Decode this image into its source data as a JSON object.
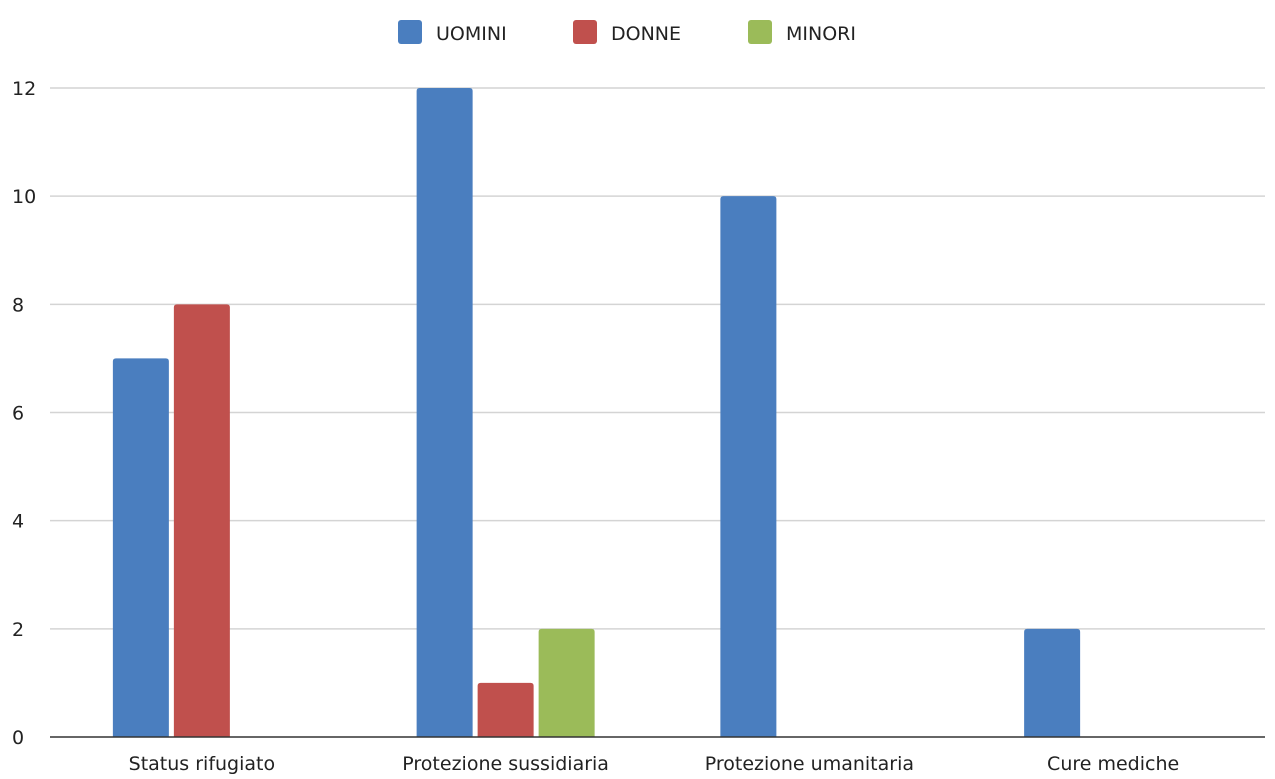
{
  "chart_data": {
    "type": "bar",
    "categories": [
      "Status rifugiato",
      "Protezione sussidiaria",
      "Protezione umanitaria",
      "Cure mediche"
    ],
    "series": [
      {
        "name": "UOMINI",
        "color": "#4a7ebf",
        "values": [
          7,
          12,
          10,
          2
        ]
      },
      {
        "name": "DONNE",
        "color": "#c0504d",
        "values": [
          8,
          1,
          0,
          0
        ]
      },
      {
        "name": "MINORI",
        "color": "#9bbb59",
        "values": [
          0,
          2,
          0,
          0
        ]
      }
    ],
    "yticks": [
      "0",
      "2",
      "4",
      "6",
      "8",
      "10",
      "12"
    ],
    "ylim": [
      0,
      12
    ],
    "grid": true,
    "legend_position": "top-center",
    "title": "",
    "xlabel": "",
    "ylabel": ""
  }
}
